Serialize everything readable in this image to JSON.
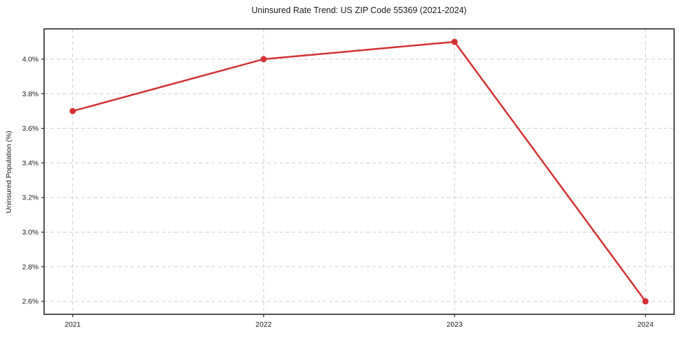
{
  "chart_data": {
    "type": "line",
    "title": "Uninsured Rate Trend: US ZIP Code 55369 (2021-2024)",
    "xlabel": "",
    "ylabel": "Uninsured Population (%)",
    "x": [
      2021,
      2022,
      2023,
      2024
    ],
    "x_tick_labels": [
      "2021",
      "2022",
      "2023",
      "2024"
    ],
    "series": [
      {
        "name": "Uninsured rate",
        "values": [
          3.7,
          4.0,
          4.1,
          2.6
        ],
        "color": "#d32f2f"
      }
    ],
    "yticks": [
      2.6,
      2.8,
      3.0,
      3.2,
      3.4,
      3.6,
      3.8,
      4.0
    ],
    "y_tick_labels": [
      "2.6%",
      "2.8%",
      "3.0%",
      "3.2%",
      "3.4%",
      "3.6%",
      "3.8%",
      "4.0%"
    ],
    "ylim": [
      2.525,
      4.175
    ],
    "xlim": [
      2020.85,
      2024.15
    ],
    "grid": true,
    "grid_style": "dashed",
    "legend": "none",
    "colors": {
      "line": "#d32f2f",
      "grid": "#cfcfcf",
      "axis": "#262626",
      "text": "#1a1a1a",
      "background": "#ffffff"
    }
  }
}
